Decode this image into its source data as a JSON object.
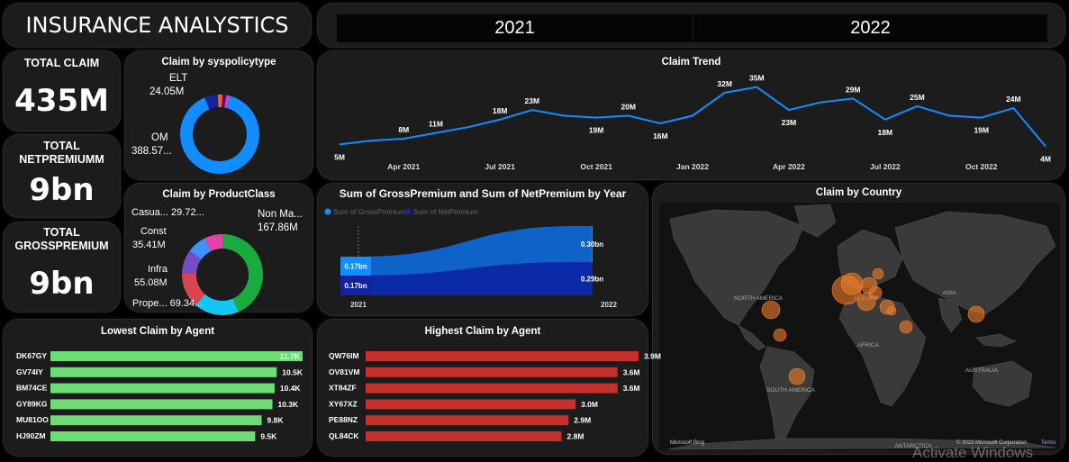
{
  "header": {
    "title": "INSURANCE ANALYSTICS",
    "years": [
      "2021",
      "2022"
    ]
  },
  "kpis": {
    "total_claim": {
      "label": "TOTAL CLAIM",
      "value": "435M"
    },
    "total_net": {
      "label_line1": "TOTAL",
      "label_line2": "NETPREMIUMM",
      "value": "9bn"
    },
    "total_gross": {
      "label_line1": "TOTAL",
      "label_line2": "GROSSPREMIUM",
      "value": "9bn"
    }
  },
  "colors": {
    "blue": "#118dff",
    "green": "#6ddc74",
    "red": "#c4302b",
    "darkblue": "#12239e"
  },
  "chart_data": [
    {
      "id": "policytype",
      "type": "pie",
      "title": "Claim by syspolicytype",
      "slices": [
        {
          "name": "OM",
          "value": 388.57,
          "label": "OM",
          "value_label": "388.57...",
          "color": "#118dff"
        },
        {
          "name": "ELT",
          "value": 24.05,
          "label": "ELT",
          "value_label": "24.05M",
          "color": "#12239e"
        },
        {
          "name": "",
          "value": 8,
          "color": "#e66c37"
        },
        {
          "name": "",
          "value": 7,
          "color": "#6b007b"
        },
        {
          "name": "",
          "value": 5,
          "color": "#e044a7"
        }
      ]
    },
    {
      "id": "productclass",
      "type": "pie",
      "title": "Claim by ProductClass",
      "slices": [
        {
          "name": "Non Ma...",
          "value": 167.86,
          "label": "Non Ma...",
          "value_label": "167.86M",
          "color": "#1aab40"
        },
        {
          "name": "Prope...",
          "value": 69.34,
          "label": "Prope...",
          "value_label": "69.34...",
          "color": "#15c6f4"
        },
        {
          "name": "Infra",
          "value": 55.08,
          "label": "Infra",
          "value_label": "55.08M",
          "color": "#d64550"
        },
        {
          "name": "Const",
          "value": 35.41,
          "label": "Const",
          "value_label": "35.41M",
          "color": "#744ec2"
        },
        {
          "name": "Casua...",
          "value": 29.72,
          "label": "Casua...",
          "value_label": "29.72...",
          "color": "#4092ff"
        },
        {
          "name": "",
          "value": 28,
          "color": "#e044a7"
        }
      ]
    },
    {
      "id": "trend",
      "type": "line",
      "title": "Claim Trend",
      "x_ticks": [
        "Apr 2021",
        "Jul 2021",
        "Oct 2021",
        "Jan 2022",
        "Apr 2022",
        "Jul 2022",
        "Oct 2022"
      ],
      "values": [
        5,
        7,
        8,
        11,
        14,
        18,
        23,
        20,
        19,
        20,
        16,
        20,
        32,
        35,
        23,
        27,
        29,
        18,
        25,
        20,
        19,
        24,
        4
      ],
      "labels": [
        "5M",
        "",
        "8M",
        "11M",
        "",
        "18M",
        "23M",
        "",
        "19M",
        "20M",
        "16M",
        "",
        "32M",
        "35M",
        "23M",
        "",
        "29M",
        "18M",
        "25M",
        "",
        "19M",
        "24M",
        "4M"
      ],
      "ylim": [
        0,
        40
      ]
    },
    {
      "id": "premium",
      "type": "area",
      "title": "Sum of GrossPremium and Sum of NetPremium by Year",
      "categories": [
        "2021",
        "2022"
      ],
      "series": [
        {
          "name": "Sum of GrossPremium",
          "values": [
            0.17,
            0.3
          ],
          "labels": [
            "0.17bn",
            "0.30bn"
          ],
          "color": "#118dff"
        },
        {
          "name": "Sum of NetPremium",
          "values": [
            0.17,
            0.29
          ],
          "labels": [
            "0.17bn",
            "0.29bn"
          ],
          "color": "#12239e"
        }
      ]
    },
    {
      "id": "lowest",
      "type": "bar",
      "title": "Lowest Claim by Agent",
      "categories": [
        "DK67GY",
        "GV74IY",
        "BM74CE",
        "GY89KG",
        "MU81OO",
        "HJ90ZM"
      ],
      "values": [
        11.7,
        10.5,
        10.4,
        10.3,
        9.8,
        9.5
      ],
      "labels": [
        "11.7K",
        "10.5K",
        "10.4K",
        "10.3K",
        "9.8K",
        "9.5K"
      ],
      "xlim": [
        0,
        11.7
      ]
    },
    {
      "id": "highest",
      "type": "bar",
      "title": "Highest Claim by Agent",
      "categories": [
        "QW76IM",
        "OV81VM",
        "XT84ZF",
        "XY67XZ",
        "PE88NZ",
        "QL84CK"
      ],
      "values": [
        3.9,
        3.6,
        3.6,
        3.0,
        2.9,
        2.8
      ],
      "labels": [
        "3.9M",
        "3.6M",
        "3.6M",
        "3.0M",
        "2.9M",
        "2.8M"
      ],
      "xlim": [
        0,
        3.9
      ]
    }
  ],
  "map": {
    "title": "Claim by Country",
    "labels": [
      "NORTH AMERICA",
      "SOUTH AMERICA",
      "EUROPE",
      "AFRICA",
      "ASIA",
      "AUSTRALIA",
      "ANTARCTICA"
    ],
    "footer_left": "Microsoft Bing",
    "footer_right": "© 2023 Microsoft Corporation",
    "terms": "Terms"
  },
  "watermark": "Activate Windows"
}
